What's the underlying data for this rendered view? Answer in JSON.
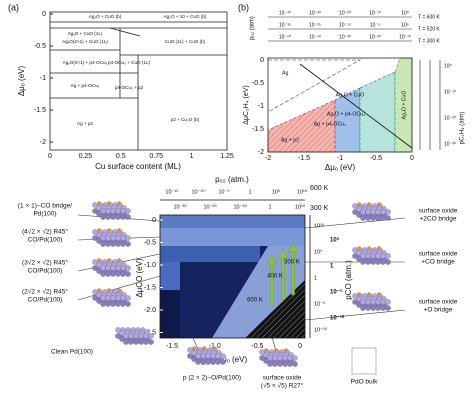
{
  "panel_a": {
    "label": "(a)",
    "y_label": "Δμₒ (eV)",
    "x_label": "Cu surface content (ML)",
    "yticks": [
      "0",
      "-0.5",
      "-1",
      "-1.5",
      "-2"
    ],
    "xticks": [
      "0",
      "0.25",
      "0.5",
      "0.75",
      "1",
      "1.25"
    ],
    "regions": [
      "Ag₂O + CuO (b)",
      "Ag₂O + 10 + CuO (b)",
      "AgₓO + CuO (1L)",
      "AgₓO(2×1) + CuO (1L)",
      "CuO (1L) + CuO (b)",
      "AgₓO(2×1) + p4-OCu₃",
      "p4-OCu₃ + CuO (1L)",
      "Ag + p4-OCu₃",
      "p4-OCu₃ + p2",
      "Ag + p2",
      "p2 + Cu₂O (b)"
    ]
  },
  "panel_b": {
    "label": "(b)",
    "top_label": "pₒ₂ (atm)",
    "y_label": "ΔμC₂H₄ (eV)",
    "x_label": "Δμₒ (eV)",
    "right_label": "pC₂H₄ (atm)",
    "temps": [
      "T = 600 K",
      "T = 520 K",
      "T = 300 K"
    ],
    "top_ticks": [
      [
        "10⁻⁴⁰",
        "10⁻³⁰",
        "10⁻²⁰",
        "10⁻¹⁰",
        "10⁰"
      ],
      [
        "10⁻³⁵",
        "10⁻²⁵",
        "10⁻¹⁵",
        "10⁻⁵",
        "10⁵"
      ],
      [
        "10⁻⁵⁰",
        "10⁻⁴⁰",
        "10⁻³⁰",
        "10⁻²⁰",
        "10⁻¹⁰"
      ]
    ],
    "yticks": [
      "0",
      "-0.5",
      "-1",
      "-1.5",
      "-2"
    ],
    "xticks": [
      "-2",
      "-1.5",
      "-1",
      "-0.5",
      "0"
    ],
    "right_ticks": [
      "10⁰",
      "10⁻¹⁰",
      "10⁻²⁰",
      "10⁻³⁰"
    ],
    "regions": [
      "Ag",
      "AgₓO + CuO",
      "AgₓO + p4-OCu₃",
      "Ag + p4-OCu₃",
      "Ag + p2",
      "Ag₂O + CuO"
    ]
  },
  "panel_c": {
    "top_label": "pₒ₂ (atm.)",
    "top_ticks": [
      "10⁻¹⁵",
      "10⁻¹⁰",
      "10⁻⁵",
      "1",
      "10⁵",
      "10¹⁰"
    ],
    "top_ticks2": [
      "10⁻³⁰",
      "10⁻²⁰",
      "10⁻¹⁰",
      "1",
      "10¹⁰"
    ],
    "temps_top": [
      "600 K",
      "300 K"
    ],
    "y_label": "ΔμCO (eV)",
    "yticks": [
      "0",
      "-0.5",
      "-1.0",
      "-1.5",
      "-2.0",
      "-2.5"
    ],
    "x_label": "Δμₒ (eV)",
    "xticks": [
      "-1.5",
      "-1.0",
      "-0.5",
      "0"
    ],
    "right_label": "pCO (atm.)",
    "right_ticks": [
      "10¹⁰",
      "10⁵",
      "1",
      "10⁻⁵",
      "10⁻¹⁰"
    ],
    "right_ticks2": [
      "10⁵",
      "1",
      "10⁻⁵",
      "10⁻¹⁰"
    ],
    "temps_inside": [
      "300 K",
      "400 K",
      "600 K"
    ],
    "left_labels": [
      [
        "(1 × 1)−CO bridge/",
        "Pd(100)"
      ],
      [
        "(4√2 × √2) R45°",
        "CO/Pd(100)"
      ],
      [
        "(3√2 × √2) R45°",
        "CO/Pd(100)"
      ],
      [
        "(2√2 × √2) R45°",
        "CO/Pd(100)"
      ],
      [
        "Clean Pd(100)"
      ]
    ],
    "right_labels": [
      [
        "surface oxide",
        "+2CO bridge"
      ],
      [
        "surface oxide",
        "+CO bridge"
      ],
      [
        "surface oxide",
        "+O bridge"
      ]
    ],
    "bottom_labels": [
      [
        "p (2 × 2)−O/Pd(100)"
      ],
      [
        "surface oxide",
        "(√5 × √5) R27°"
      ],
      [
        "PdO bulk"
      ]
    ]
  }
}
